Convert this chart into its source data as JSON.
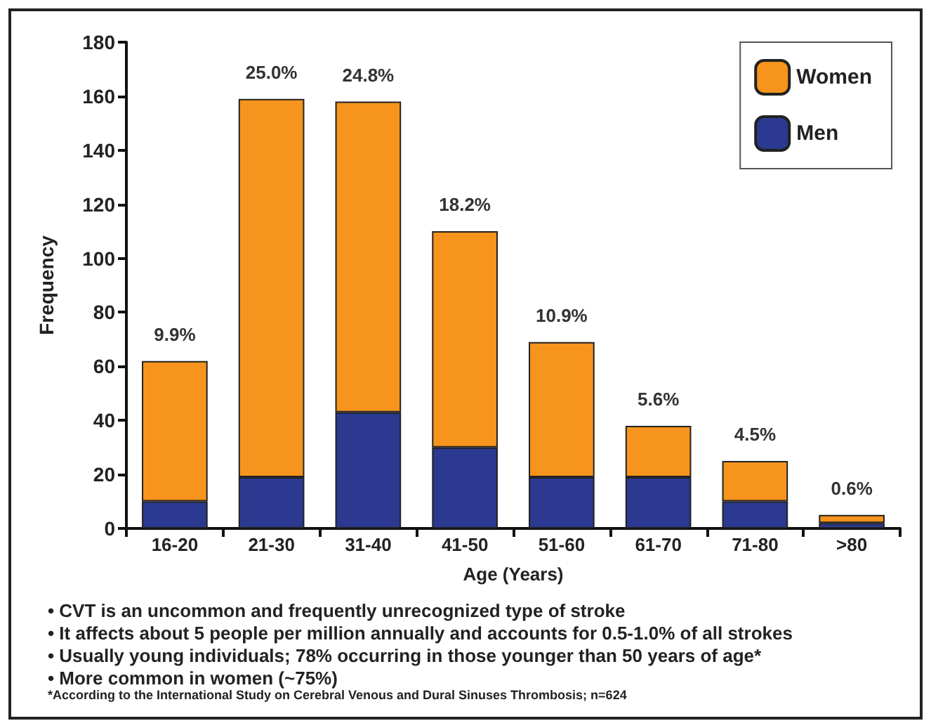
{
  "chart_data": {
    "type": "bar",
    "stacked": true,
    "xlabel": "Age (Years)",
    "ylabel": "Frequency",
    "categories": [
      "16-20",
      "21-30",
      "31-40",
      "41-50",
      "51-60",
      "61-70",
      "71-80",
      ">80"
    ],
    "series": [
      {
        "name": "Men",
        "color": "#2b3990",
        "values": [
          10,
          19,
          43,
          30,
          19,
          19,
          10,
          2
        ]
      },
      {
        "name": "Women",
        "color": "#f7941d",
        "values": [
          52,
          140,
          115,
          80,
          50,
          19,
          15,
          3
        ]
      }
    ],
    "ylim": [
      0,
      180
    ],
    "yticks": [
      0,
      20,
      40,
      60,
      80,
      100,
      120,
      140,
      160,
      180
    ],
    "grid": false,
    "legend": "top right",
    "annotations": [
      {
        "text": "9.9%",
        "x": "16-20",
        "y": 62
      },
      {
        "text": "25.0%",
        "x": "21-30",
        "y": 159
      },
      {
        "text": "24.8%",
        "x": "31-40",
        "y": 158
      },
      {
        "text": "18.2%",
        "x": "41-50",
        "y": 110
      },
      {
        "text": "10.9%",
        "x": "51-60",
        "y": 69
      },
      {
        "text": "5.6%",
        "x": "61-70",
        "y": 38
      },
      {
        "text": "4.5%",
        "x": "71-80",
        "y": 25
      },
      {
        "text": "0.6%",
        "x": ">80",
        "y": 5
      },
      "• CVT is an uncommon and frequently unrecognized type of stroke",
      "• It affects about 5 people per million annually and accounts for 0.5-1.0% of all strokes",
      "• Usually young individuals; 78% occurring in those younger than 50 years of age*",
      "• More common in women (~75%)",
      "*According to the International Study on Cerebral Venous and Dural Sinuses Thrombosis; n=624"
    ]
  }
}
